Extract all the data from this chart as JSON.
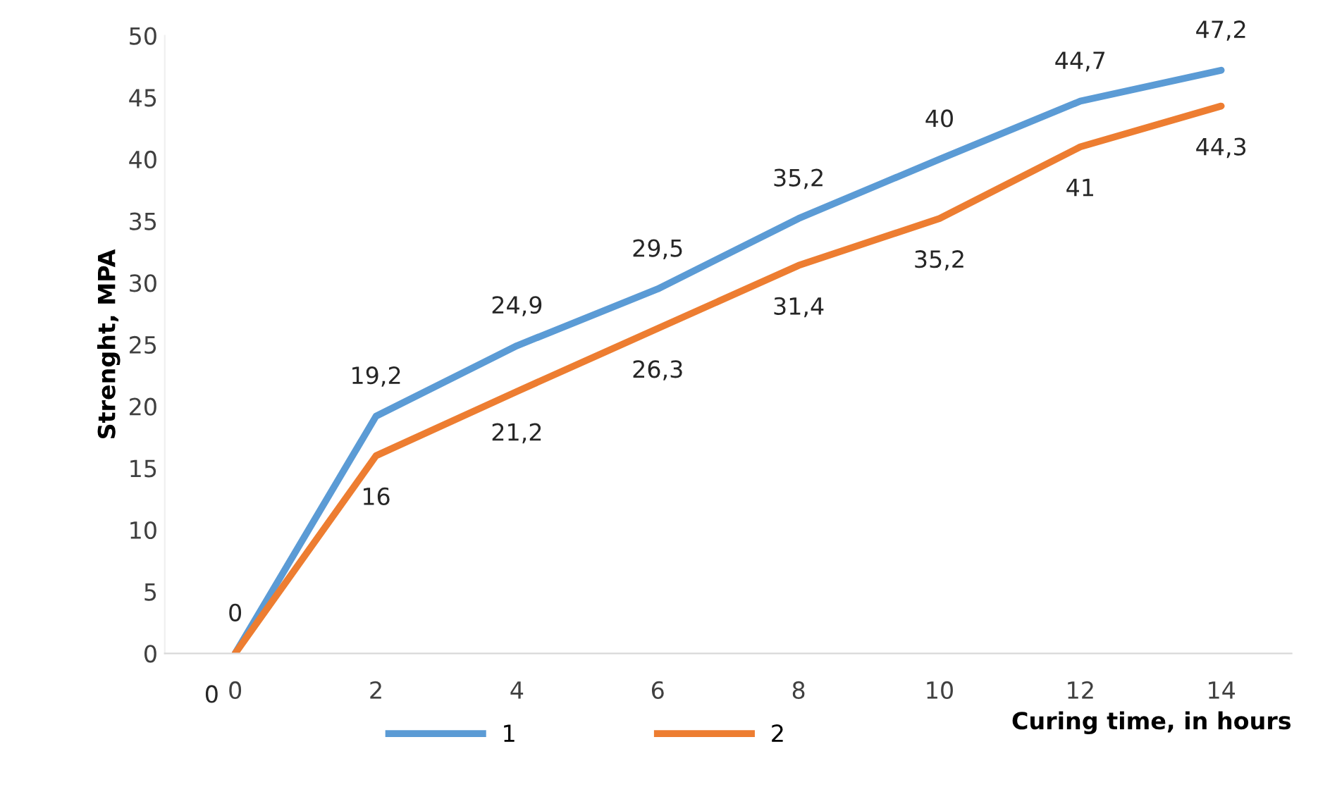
{
  "chart_data": {
    "type": "line",
    "xlabel": "Curing time, in hours",
    "ylabel": "Strenght, MPA",
    "categories": [
      "0",
      "2",
      "4",
      "6",
      "8",
      "10",
      "12",
      "14"
    ],
    "series": [
      {
        "name": "1",
        "color": "#5b9bd5",
        "values": [
          0,
          19.2,
          24.9,
          29.5,
          35.2,
          40,
          44.7,
          47.2
        ],
        "value_labels": [
          "0",
          "19,2",
          "24,9",
          "29,5",
          "35,2",
          "40",
          "44,7",
          "47,2"
        ]
      },
      {
        "name": "2",
        "color": "#ed7d31",
        "values": [
          0,
          16,
          21.2,
          26.3,
          31.4,
          35.2,
          41,
          44.3
        ],
        "value_labels": [
          "0",
          "16",
          "21,2",
          "26,3",
          "31,4",
          "35,2",
          "41",
          "44,3"
        ]
      }
    ],
    "ylim": [
      0,
      50
    ],
    "yticks": [
      0,
      5,
      10,
      15,
      20,
      25,
      30,
      35,
      40,
      45,
      50
    ],
    "grid": false,
    "legend": "bottom",
    "marker": "none",
    "line_style": "solid"
  }
}
